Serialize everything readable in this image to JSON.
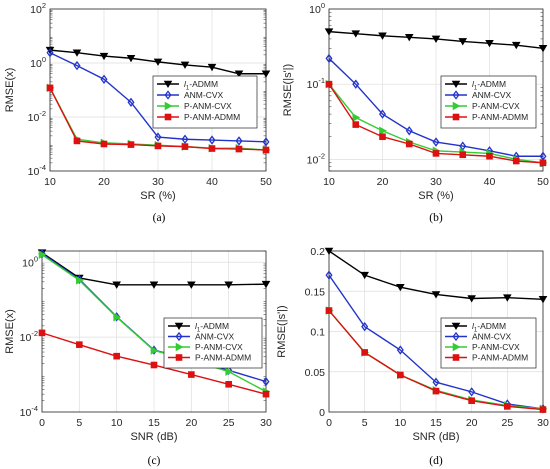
{
  "series_styles": [
    {
      "key": "l1",
      "color": "#000000",
      "marker": "triangle-down"
    },
    {
      "key": "anmcvx",
      "color": "#2233cc",
      "marker": "diamond"
    },
    {
      "key": "panmcvx",
      "color": "#33cc33",
      "marker": "triangle-right"
    },
    {
      "key": "panmadmm",
      "color": "#dd1111",
      "marker": "square"
    }
  ],
  "chart_data": [
    {
      "panel_label": "(a)",
      "type": "line",
      "xlabel": "SR (%)",
      "ylabel": "RMSE(x)",
      "x": [
        10,
        15,
        20,
        25,
        30,
        35,
        40,
        45,
        50
      ],
      "xlim": [
        10,
        50
      ],
      "xticks": [
        "10",
        "20",
        "30",
        "40",
        "50"
      ],
      "xtick_values": [
        10,
        20,
        30,
        40,
        50
      ],
      "yscale": "log",
      "ylim": [
        0.0001,
        100
      ],
      "yticks": [
        {
          "v": 0.0001,
          "e": "-4"
        },
        {
          "v": 0.01,
          "e": "-2"
        },
        {
          "v": 1,
          "e": "0"
        },
        {
          "v": 100,
          "e": "2"
        }
      ],
      "legend": "right-middle",
      "series": [
        {
          "name": "l1-ADMM",
          "name_base": "l",
          "name_sub": "1",
          "name_rest": "-ADMM",
          "style": 0,
          "values": [
            3.0,
            2.4,
            1.8,
            1.5,
            1.1,
            0.85,
            0.7,
            0.4,
            0.4
          ]
        },
        {
          "name": "ANM-CVX",
          "style": 1,
          "values": [
            2.4,
            0.8,
            0.25,
            0.035,
            0.0018,
            0.0015,
            0.0014,
            0.0013,
            0.0012
          ]
        },
        {
          "name": "P-ANM-CVX",
          "style": 2,
          "values": [
            0.12,
            0.0015,
            0.0011,
            0.001,
            0.0009,
            0.0008,
            0.0007,
            0.0007,
            0.0006
          ]
        },
        {
          "name": "P-ANM-ADMM",
          "style": 3,
          "values": [
            0.12,
            0.0013,
            0.001,
            0.00095,
            0.00085,
            0.0008,
            0.00068,
            0.00065,
            0.0006
          ]
        }
      ]
    },
    {
      "panel_label": "(b)",
      "type": "line",
      "xlabel": "SR (%)",
      "ylabel": "RMSE(|s'|)",
      "x": [
        10,
        15,
        20,
        25,
        30,
        35,
        40,
        45,
        50
      ],
      "xlim": [
        10,
        50
      ],
      "xticks": [
        "10",
        "20",
        "30",
        "40",
        "50"
      ],
      "xtick_values": [
        10,
        20,
        30,
        40,
        50
      ],
      "yscale": "log",
      "ylim": [
        0.007,
        1
      ],
      "yticks": [
        {
          "v": 0.01,
          "e": "-2"
        },
        {
          "v": 0.1,
          "e": "-1"
        },
        {
          "v": 1,
          "e": "0"
        }
      ],
      "legend": "right-middle",
      "series": [
        {
          "name": "l1-ADMM",
          "name_base": "l",
          "name_sub": "1",
          "name_rest": "-ADMM",
          "style": 0,
          "values": [
            0.5,
            0.47,
            0.44,
            0.42,
            0.4,
            0.37,
            0.35,
            0.33,
            0.3
          ]
        },
        {
          "name": "ANM-CVX",
          "style": 1,
          "values": [
            0.22,
            0.1,
            0.04,
            0.024,
            0.017,
            0.015,
            0.013,
            0.011,
            0.011
          ]
        },
        {
          "name": "P-ANM-CVX",
          "style": 2,
          "values": [
            0.1,
            0.036,
            0.024,
            0.017,
            0.013,
            0.0125,
            0.012,
            0.01,
            0.009
          ]
        },
        {
          "name": "P-ANM-ADMM",
          "style": 3,
          "values": [
            0.1,
            0.029,
            0.02,
            0.016,
            0.012,
            0.0115,
            0.011,
            0.0095,
            0.009
          ]
        }
      ]
    },
    {
      "panel_label": "(c)",
      "type": "line",
      "xlabel": "SNR (dB)",
      "ylabel": "RMSE(x)",
      "x": [
        0,
        5,
        10,
        15,
        20,
        25,
        30
      ],
      "xlim": [
        0,
        30
      ],
      "xticks": [
        "0",
        "5",
        "10",
        "15",
        "20",
        "25",
        "30"
      ],
      "xtick_values": [
        0,
        5,
        10,
        15,
        20,
        25,
        30
      ],
      "yscale": "log",
      "ylim": [
        0.0001,
        2
      ],
      "yticks": [
        {
          "v": 0.0001,
          "e": "-4"
        },
        {
          "v": 0.01,
          "e": "-2"
        },
        {
          "v": 1,
          "e": "0"
        }
      ],
      "legend": "right-middle",
      "series": [
        {
          "name": "l1-ADMM",
          "name_base": "l",
          "name_sub": "1",
          "name_rest": "-ADMM",
          "style": 0,
          "values": [
            1.8,
            0.38,
            0.25,
            0.25,
            0.25,
            0.25,
            0.26
          ]
        },
        {
          "name": "ANM-CVX",
          "style": 1,
          "values": [
            1.7,
            0.35,
            0.035,
            0.0045,
            0.0025,
            0.0013,
            0.00065
          ]
        },
        {
          "name": "P-ANM-CVX",
          "style": 2,
          "values": [
            1.6,
            0.33,
            0.034,
            0.0044,
            0.0024,
            0.0012,
            0.00035
          ]
        },
        {
          "name": "P-ANM-ADMM",
          "style": 3,
          "values": [
            0.013,
            0.0063,
            0.0031,
            0.0018,
            0.001,
            0.00055,
            0.0003
          ]
        }
      ]
    },
    {
      "panel_label": "(d)",
      "type": "line",
      "xlabel": "SNR (dB)",
      "ylabel": "RMSE(|s'|)",
      "x": [
        0,
        5,
        10,
        15,
        20,
        25,
        30
      ],
      "xlim": [
        0,
        30
      ],
      "xticks": [
        "0",
        "5",
        "10",
        "15",
        "20",
        "25",
        "30"
      ],
      "xtick_values": [
        0,
        5,
        10,
        15,
        20,
        25,
        30
      ],
      "yscale": "linear",
      "ylim": [
        0,
        0.2
      ],
      "yticks": [
        {
          "v": 0,
          "t": "0"
        },
        {
          "v": 0.05,
          "t": "0.05"
        },
        {
          "v": 0.1,
          "t": "0.1"
        },
        {
          "v": 0.15,
          "t": "0.15"
        },
        {
          "v": 0.2,
          "t": "0.2"
        }
      ],
      "legend": "right-middle",
      "series": [
        {
          "name": "l1-ADMM",
          "name_base": "l",
          "name_sub": "1",
          "name_rest": "-ADMM",
          "style": 0,
          "values": [
            0.2,
            0.17,
            0.155,
            0.146,
            0.141,
            0.142,
            0.14
          ]
        },
        {
          "name": "ANM-CVX",
          "style": 1,
          "values": [
            0.17,
            0.106,
            0.077,
            0.037,
            0.025,
            0.01,
            0.004
          ]
        },
        {
          "name": "P-ANM-CVX",
          "style": 2,
          "values": [
            0.126,
            0.074,
            0.046,
            0.027,
            0.015,
            0.008,
            0.004
          ]
        },
        {
          "name": "P-ANM-ADMM",
          "style": 3,
          "values": [
            0.126,
            0.074,
            0.046,
            0.026,
            0.014,
            0.007,
            0.003
          ]
        }
      ]
    }
  ]
}
